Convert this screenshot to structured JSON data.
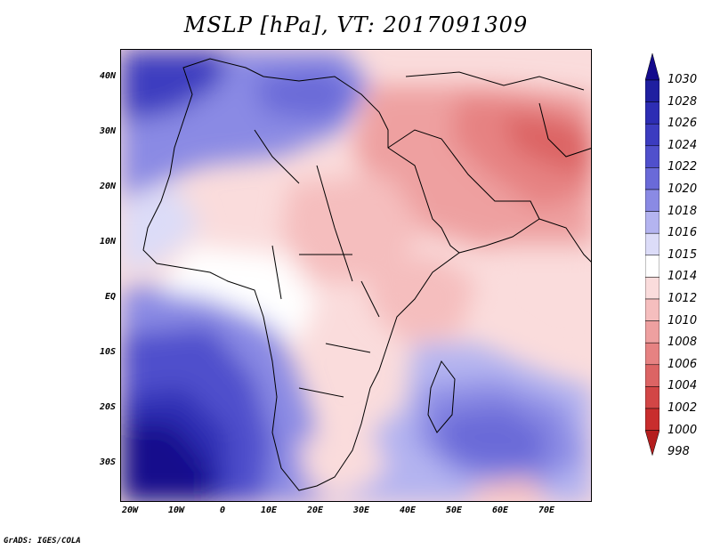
{
  "title": "MSLP [hPa], VT: 2017091309",
  "footer": "GrADS: IGES/COLA",
  "lat_labels": [
    "40N",
    "30N",
    "20N",
    "10N",
    "EQ",
    "10S",
    "20S",
    "30S"
  ],
  "lon_labels": [
    "20W",
    "10W",
    "0",
    "10E",
    "20E",
    "30E",
    "40E",
    "50E",
    "60E",
    "70E"
  ],
  "colorbar": {
    "labels": [
      "1030",
      "1028",
      "1026",
      "1024",
      "1022",
      "1020",
      "1018",
      "1016",
      "1015",
      "1014",
      "1012",
      "1010",
      "1008",
      "1006",
      "1004",
      "1002",
      "1000",
      "998"
    ],
    "colors": [
      "#140a8c",
      "#1f1fa0",
      "#2d2db4",
      "#3c3cc0",
      "#5050cc",
      "#6a6ad8",
      "#8a8ae4",
      "#b4b4f0",
      "#dcdcf8",
      "#ffffff",
      "#fadcdc",
      "#f5bebe",
      "#eea0a0",
      "#e68282",
      "#dc6464",
      "#d24646",
      "#c82d2d",
      "#b41e1e"
    ]
  },
  "colors": {
    "background": "#ffffff",
    "coast": "#000000"
  }
}
